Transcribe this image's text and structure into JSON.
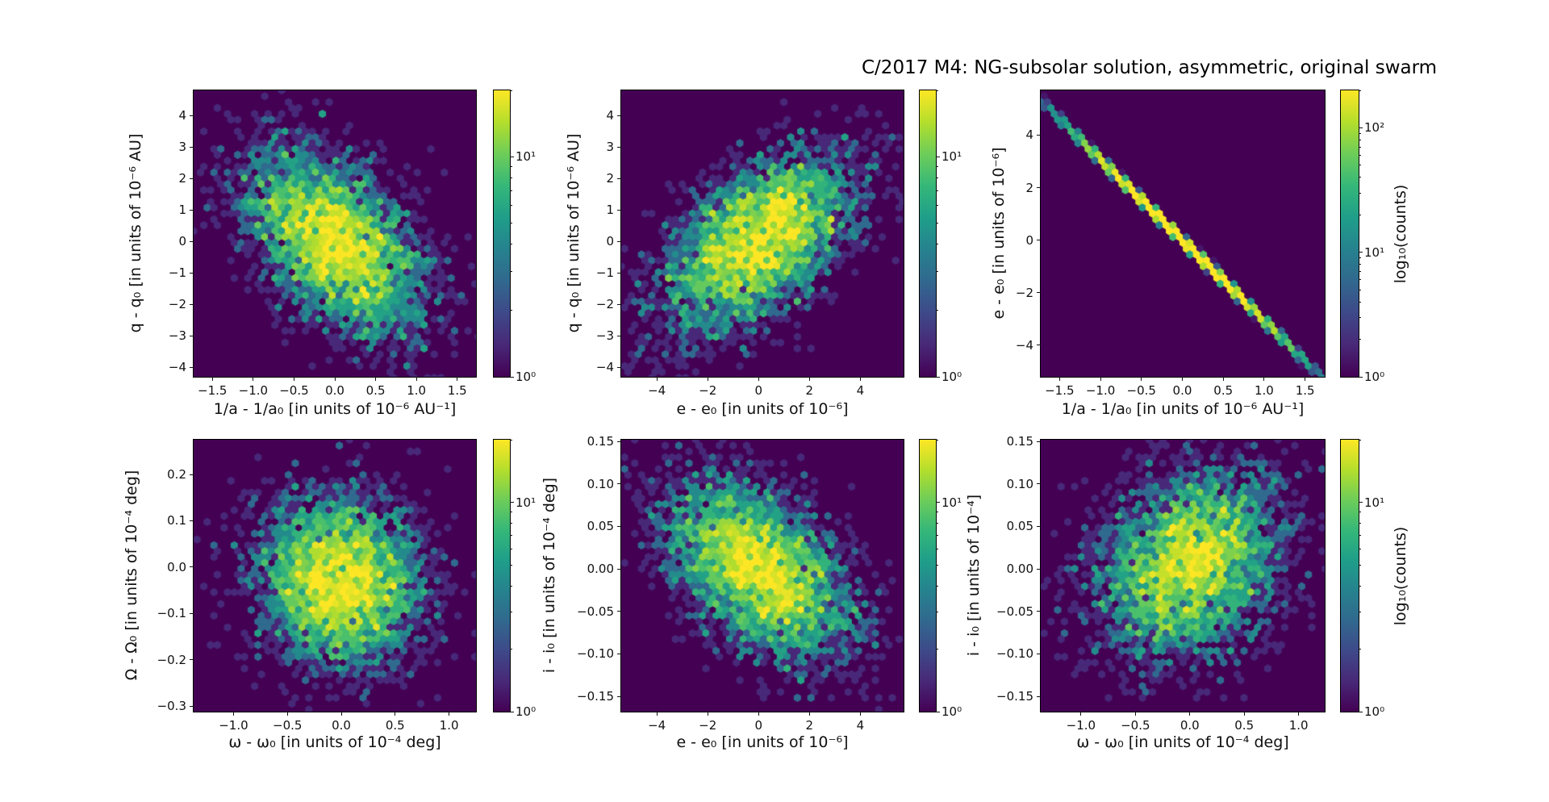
{
  "title": "C/2017 M4: NG-subsolar solution, asymmetric, original swarm",
  "colormap": {
    "name": "viridis",
    "stops": [
      "#440154",
      "#482878",
      "#3e4989",
      "#31688e",
      "#26828e",
      "#1f9e89",
      "#35b779",
      "#6dcd59",
      "#b4de2c",
      "#fde725"
    ]
  },
  "chart_data": [
    {
      "type": "hexbin",
      "panel": "top-left",
      "xlabel": "1/a - 1/a₀ [in units of 10⁻⁶ AU⁻¹]",
      "ylabel": "q - q₀ [in units of 10⁻⁶ AU]",
      "xlim": [
        -1.73,
        1.73
      ],
      "ylim": [
        -4.3,
        4.8
      ],
      "x_ticks": [
        {
          "v": -1.5,
          "label": "−1.5"
        },
        {
          "v": -1.0,
          "label": "−1.0"
        },
        {
          "v": -0.5,
          "label": "−0.5"
        },
        {
          "v": 0.0,
          "label": "0.0"
        },
        {
          "v": 0.5,
          "label": "0.5"
        },
        {
          "v": 1.0,
          "label": "1.0"
        },
        {
          "v": 1.5,
          "label": "1.5"
        }
      ],
      "y_ticks": [
        {
          "v": 4,
          "label": "4"
        },
        {
          "v": 3,
          "label": "3"
        },
        {
          "v": 2,
          "label": "2"
        },
        {
          "v": 1,
          "label": "1"
        },
        {
          "v": 0,
          "label": "0"
        },
        {
          "v": -1,
          "label": "−1"
        },
        {
          "v": -2,
          "label": "−2"
        },
        {
          "v": -3,
          "label": "−3"
        },
        {
          "v": -4,
          "label": "−4"
        }
      ],
      "colorbar": {
        "scale": "log",
        "vmin": 1,
        "vmax": 20,
        "major_ticks": [
          {
            "v": 10,
            "label": "10¹"
          },
          {
            "v": 1,
            "label": "10⁰"
          }
        ],
        "label": ""
      },
      "distribution": {
        "kind": "gaussian",
        "n": 4000,
        "center": [
          0,
          0
        ],
        "sigma": [
          0.55,
          1.5
        ],
        "corr": -0.5,
        "seed": 11
      }
    },
    {
      "type": "hexbin",
      "panel": "top-middle",
      "xlabel": "e - e₀ [in units of 10⁻⁶]",
      "ylabel": "q - q₀ [in units of 10⁻⁶ AU]",
      "xlim": [
        -5.4,
        5.7
      ],
      "ylim": [
        -4.3,
        4.8
      ],
      "x_ticks": [
        {
          "v": -4,
          "label": "−4"
        },
        {
          "v": -2,
          "label": "−2"
        },
        {
          "v": 0,
          "label": "0"
        },
        {
          "v": 2,
          "label": "2"
        },
        {
          "v": 4,
          "label": "4"
        }
      ],
      "y_ticks": [
        {
          "v": 4,
          "label": "4"
        },
        {
          "v": 3,
          "label": "3"
        },
        {
          "v": 2,
          "label": "2"
        },
        {
          "v": 1,
          "label": "1"
        },
        {
          "v": 0,
          "label": "0"
        },
        {
          "v": -1,
          "label": "−1"
        },
        {
          "v": -2,
          "label": "−2"
        },
        {
          "v": -3,
          "label": "−3"
        },
        {
          "v": -4,
          "label": "−4"
        }
      ],
      "colorbar": {
        "scale": "log",
        "vmin": 1,
        "vmax": 20,
        "major_ticks": [
          {
            "v": 10,
            "label": "10¹"
          },
          {
            "v": 1,
            "label": "10⁰"
          }
        ],
        "label": ""
      },
      "distribution": {
        "kind": "gaussian",
        "n": 4000,
        "center": [
          0,
          0
        ],
        "sigma": [
          1.9,
          1.45
        ],
        "corr": 0.55,
        "seed": 22
      }
    },
    {
      "type": "hexbin",
      "panel": "top-right",
      "xlabel": "1/a - 1/a₀ [in units of 10⁻⁶ AU⁻¹]",
      "ylabel": "e - e₀ [in units of 10⁻⁶]",
      "xlim": [
        -1.73,
        1.74
      ],
      "ylim": [
        -5.2,
        5.7
      ],
      "x_ticks": [
        {
          "v": -1.5,
          "label": "−1.5"
        },
        {
          "v": -1.0,
          "label": "−1.0"
        },
        {
          "v": -0.5,
          "label": "−0.5"
        },
        {
          "v": 0.0,
          "label": "0.0"
        },
        {
          "v": 0.5,
          "label": "0.5"
        },
        {
          "v": 1.0,
          "label": "1.0"
        },
        {
          "v": 1.5,
          "label": "1.5"
        }
      ],
      "y_ticks": [
        {
          "v": 4,
          "label": "4"
        },
        {
          "v": 2,
          "label": "2"
        },
        {
          "v": 0,
          "label": "0"
        },
        {
          "v": -2,
          "label": "−2"
        },
        {
          "v": -4,
          "label": "−4"
        }
      ],
      "colorbar": {
        "scale": "log",
        "vmin": 1,
        "vmax": 200,
        "major_ticks": [
          {
            "v": 100,
            "label": "10²"
          },
          {
            "v": 10,
            "label": "10¹"
          },
          {
            "v": 1,
            "label": "10⁰"
          }
        ],
        "label": "log₁₀(counts)"
      },
      "distribution": {
        "kind": "line",
        "n": 9000,
        "slope": -3.07,
        "sigma_along": 0.6,
        "noise": 0.045,
        "seed": 33
      }
    },
    {
      "type": "hexbin",
      "panel": "bottom-left",
      "xlabel": "ω - ω₀ [in units of 10⁻⁴ deg]",
      "ylabel": "Ω - Ω₀ [in units of 10⁻⁴ deg]",
      "xlim": [
        -1.37,
        1.25
      ],
      "ylim": [
        -0.312,
        0.275
      ],
      "x_ticks": [
        {
          "v": -1.0,
          "label": "−1.0"
        },
        {
          "v": -0.5,
          "label": "−0.5"
        },
        {
          "v": 0.0,
          "label": "0.0"
        },
        {
          "v": 0.5,
          "label": "0.5"
        },
        {
          "v": 1.0,
          "label": "1.0"
        }
      ],
      "y_ticks": [
        {
          "v": 0.2,
          "label": "0.2"
        },
        {
          "v": 0.1,
          "label": "0.1"
        },
        {
          "v": 0.0,
          "label": "0.0"
        },
        {
          "v": -0.1,
          "label": "−0.1"
        },
        {
          "v": -0.2,
          "label": "−0.2"
        },
        {
          "v": -0.3,
          "label": "−0.3"
        }
      ],
      "colorbar": {
        "scale": "log",
        "vmin": 1,
        "vmax": 20,
        "major_ticks": [
          {
            "v": 10,
            "label": "10¹"
          },
          {
            "v": 1,
            "label": "10⁰"
          }
        ],
        "label": ""
      },
      "distribution": {
        "kind": "gaussian",
        "n": 4000,
        "center": [
          -0.02,
          -0.03
        ],
        "sigma": [
          0.38,
          0.092
        ],
        "corr": -0.1,
        "seed": 44
      }
    },
    {
      "type": "hexbin",
      "panel": "bottom-middle",
      "xlabel": "e - e₀ [in units of 10⁻⁶]",
      "ylabel": "i - i₀ [in units of 10⁻⁴ deg]",
      "xlim": [
        -5.4,
        5.7
      ],
      "ylim": [
        -0.168,
        0.152
      ],
      "x_ticks": [
        {
          "v": -4,
          "label": "−4"
        },
        {
          "v": -2,
          "label": "−2"
        },
        {
          "v": 0,
          "label": "0"
        },
        {
          "v": 2,
          "label": "2"
        },
        {
          "v": 4,
          "label": "4"
        }
      ],
      "y_ticks": [
        {
          "v": 0.15,
          "label": "0.15"
        },
        {
          "v": 0.1,
          "label": "0.10"
        },
        {
          "v": 0.05,
          "label": "0.05"
        },
        {
          "v": 0.0,
          "label": "0.00"
        },
        {
          "v": -0.05,
          "label": "−0.05"
        },
        {
          "v": -0.1,
          "label": "−0.10"
        },
        {
          "v": -0.15,
          "label": "−0.15"
        }
      ],
      "colorbar": {
        "scale": "log",
        "vmin": 1,
        "vmax": 20,
        "major_ticks": [
          {
            "v": 10,
            "label": "10¹"
          },
          {
            "v": 1,
            "label": "10⁰"
          }
        ],
        "label": ""
      },
      "distribution": {
        "kind": "gaussian",
        "n": 4000,
        "center": [
          0,
          0
        ],
        "sigma": [
          1.85,
          0.053
        ],
        "corr": -0.5,
        "seed": 55
      }
    },
    {
      "type": "hexbin",
      "panel": "bottom-right",
      "xlabel": "ω - ω₀ [in units of 10⁻⁴ deg]",
      "ylabel": "i - i₀ [in units of 10⁻⁴]",
      "xlim": [
        -1.37,
        1.24
      ],
      "ylim": [
        -0.168,
        0.152
      ],
      "x_ticks": [
        {
          "v": -1.0,
          "label": "−1.0"
        },
        {
          "v": -0.5,
          "label": "−0.5"
        },
        {
          "v": 0.0,
          "label": "0.0"
        },
        {
          "v": 0.5,
          "label": "0.5"
        },
        {
          "v": 1.0,
          "label": "1.0"
        }
      ],
      "y_ticks": [
        {
          "v": 0.15,
          "label": "0.15"
        },
        {
          "v": 0.1,
          "label": "0.10"
        },
        {
          "v": 0.05,
          "label": "0.05"
        },
        {
          "v": 0.0,
          "label": "0.00"
        },
        {
          "v": -0.05,
          "label": "−0.05"
        },
        {
          "v": -0.1,
          "label": "−0.10"
        },
        {
          "v": -0.15,
          "label": "−0.15"
        }
      ],
      "colorbar": {
        "scale": "log",
        "vmin": 1,
        "vmax": 20,
        "major_ticks": [
          {
            "v": 10,
            "label": "10¹"
          },
          {
            "v": 1,
            "label": "10⁰"
          }
        ],
        "label": "log₁₀(counts)"
      },
      "distribution": {
        "kind": "gaussian",
        "n": 4000,
        "center": [
          0,
          0.005
        ],
        "sigma": [
          0.42,
          0.054
        ],
        "corr": 0.25,
        "seed": 66
      }
    }
  ]
}
